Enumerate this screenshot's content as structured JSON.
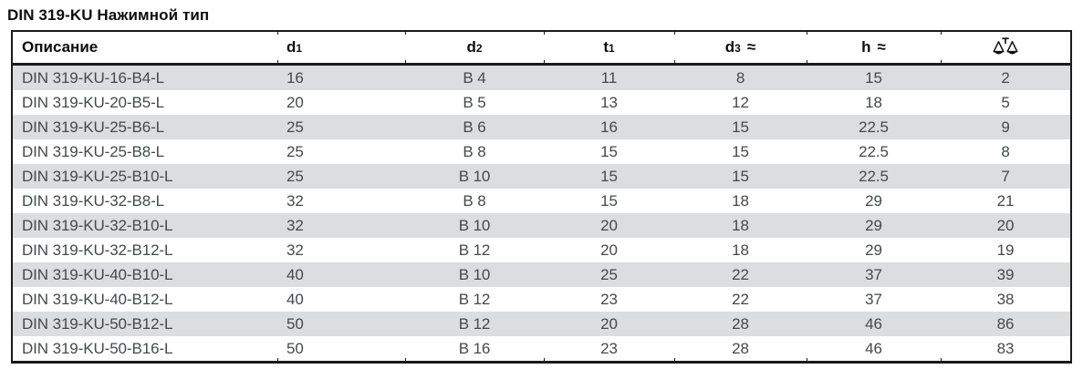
{
  "page": {
    "title": "DIN 319-KU Нажимной тип"
  },
  "table": {
    "columns": [
      {
        "key": "description",
        "label": "Описание"
      },
      {
        "key": "d1",
        "base": "d",
        "sub": "1"
      },
      {
        "key": "d2",
        "base": "d",
        "sub": "2"
      },
      {
        "key": "t1",
        "base": "t",
        "sub": "1"
      },
      {
        "key": "d3",
        "base": "d",
        "sub": "3",
        "approx": "≈"
      },
      {
        "key": "h",
        "base": "h",
        "approx": "≈"
      },
      {
        "key": "weight",
        "icon": "scales-icon"
      }
    ],
    "rows": [
      [
        "DIN 319-KU-16-B4-L",
        "16",
        "B 4",
        "11",
        "8",
        "15",
        "2"
      ],
      [
        "DIN 319-KU-20-B5-L",
        "20",
        "B 5",
        "13",
        "12",
        "18",
        "5"
      ],
      [
        "DIN 319-KU-25-B6-L",
        "25",
        "B 6",
        "16",
        "15",
        "22.5",
        "9"
      ],
      [
        "DIN 319-KU-25-B8-L",
        "25",
        "B 8",
        "15",
        "15",
        "22.5",
        "8"
      ],
      [
        "DIN 319-KU-25-B10-L",
        "25",
        "B 10",
        "15",
        "15",
        "22.5",
        "7"
      ],
      [
        "DIN 319-KU-32-B8-L",
        "32",
        "B 8",
        "15",
        "18",
        "29",
        "21"
      ],
      [
        "DIN 319-KU-32-B10-L",
        "32",
        "B 10",
        "20",
        "18",
        "29",
        "20"
      ],
      [
        "DIN 319-KU-32-B12-L",
        "32",
        "B 12",
        "20",
        "18",
        "29",
        "19"
      ],
      [
        "DIN 319-KU-40-B10-L",
        "40",
        "B 10",
        "25",
        "22",
        "37",
        "39"
      ],
      [
        "DIN 319-KU-40-B12-L",
        "40",
        "B 12",
        "23",
        "22",
        "37",
        "38"
      ],
      [
        "DIN 319-KU-50-B12-L",
        "50",
        "B 12",
        "20",
        "28",
        "46",
        "86"
      ],
      [
        "DIN 319-KU-50-B16-L",
        "50",
        "B 16",
        "23",
        "28",
        "46",
        "83"
      ]
    ],
    "colors": {
      "row_alt": "#dcdddf",
      "border": "#1a1a1a",
      "header_text": "#0e0e0e",
      "body_text": "#46484a"
    }
  }
}
